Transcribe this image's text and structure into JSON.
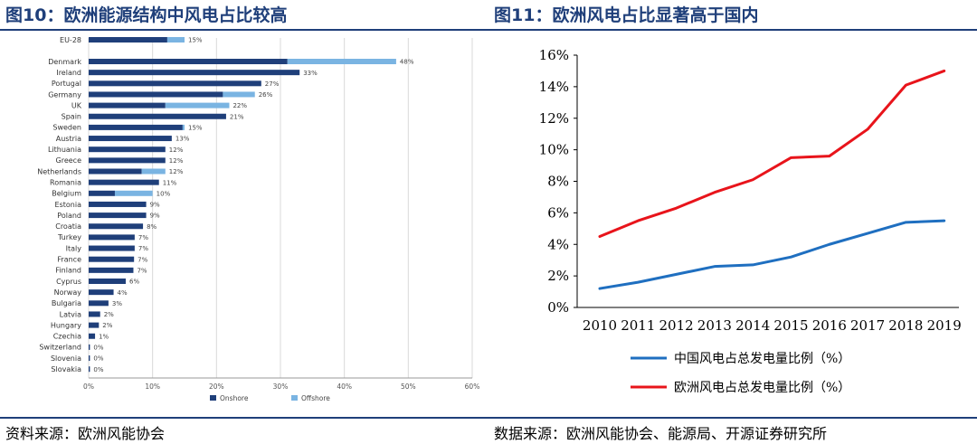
{
  "left": {
    "title": "图10：欧洲能源结构中风电占比较高",
    "source": "资料来源：欧洲风能协会",
    "chart_data": {
      "type": "bar",
      "orientation": "horizontal",
      "stacked": true,
      "categories": [
        "EU-28",
        "Denmark",
        "Ireland",
        "Portugal",
        "Germany",
        "UK",
        "Spain",
        "Sweden",
        "Austria",
        "Lithuania",
        "Greece",
        "Netherlands",
        "Romania",
        "Belgium",
        "Estonia",
        "Poland",
        "Croatia",
        "Turkey",
        "Italy",
        "France",
        "Finland",
        "Cyprus",
        "Norway",
        "Bulgaria",
        "Latvia",
        "Hungary",
        "Czechia",
        "Switzerland",
        "Slovenia",
        "Slovakia"
      ],
      "series": [
        {
          "name": "Onshore",
          "color": "#1f3f7a",
          "values": [
            12.3,
            31.1,
            33,
            27,
            21,
            12,
            21.5,
            14.7,
            13,
            12,
            12,
            8.3,
            11,
            4.1,
            9,
            9,
            8.5,
            7.2,
            7.2,
            7.1,
            7,
            5.8,
            3.9,
            3.1,
            1.8,
            1.6,
            1,
            0.2,
            0.2,
            0.2
          ]
        },
        {
          "name": "Offshore",
          "color": "#7ab4e2",
          "values": [
            2.7,
            17,
            0,
            0,
            5,
            10,
            0,
            0.3,
            0,
            0,
            0,
            3.7,
            0,
            5.9,
            0,
            0,
            0,
            0,
            0,
            0,
            0,
            0,
            0,
            0,
            0,
            0,
            0,
            0,
            0,
            0
          ]
        }
      ],
      "value_labels": [
        "15%",
        "48%",
        "33%",
        "27%",
        "26%",
        "22%",
        "21%",
        "15%",
        "13%",
        "12%",
        "12%",
        "12%",
        "11%",
        "10%",
        "9%",
        "9%",
        "8%",
        "7%",
        "7%",
        "7%",
        "7%",
        "6%",
        "4%",
        "3%",
        "2%",
        "2%",
        "1%",
        "0%",
        "0%",
        "0%"
      ],
      "xlim": [
        0,
        60
      ],
      "x_ticks": [
        "0%",
        "10%",
        "20%",
        "30%",
        "40%",
        "50%",
        "60%"
      ],
      "grid": true,
      "legend": "bottom"
    }
  },
  "right": {
    "title": "图11：欧洲风电占比显著高于国内",
    "source": "数据来源：欧洲风能协会、能源局、开源证券研究所",
    "chart_data": {
      "type": "line",
      "x": [
        "2010",
        "2011",
        "2012",
        "2013",
        "2014",
        "2015",
        "2016",
        "2017",
        "2018",
        "2019"
      ],
      "series": [
        {
          "name": "中国风电占总发电量比例（%）",
          "color": "#1f6fc0",
          "values": [
            1.2,
            1.6,
            2.1,
            2.6,
            2.7,
            3.2,
            4.0,
            4.7,
            5.4,
            5.5
          ]
        },
        {
          "name": "欧洲风电占总发电量比例（%）",
          "color": "#e8141b",
          "values": [
            4.5,
            5.5,
            6.3,
            7.3,
            8.1,
            9.5,
            9.6,
            11.3,
            14.1,
            15.0
          ]
        }
      ],
      "ylim": [
        0,
        16
      ],
      "y_ticks": [
        "0%",
        "2%",
        "4%",
        "6%",
        "8%",
        "10%",
        "12%",
        "14%",
        "16%"
      ],
      "grid": false,
      "legend": "bottom"
    }
  }
}
